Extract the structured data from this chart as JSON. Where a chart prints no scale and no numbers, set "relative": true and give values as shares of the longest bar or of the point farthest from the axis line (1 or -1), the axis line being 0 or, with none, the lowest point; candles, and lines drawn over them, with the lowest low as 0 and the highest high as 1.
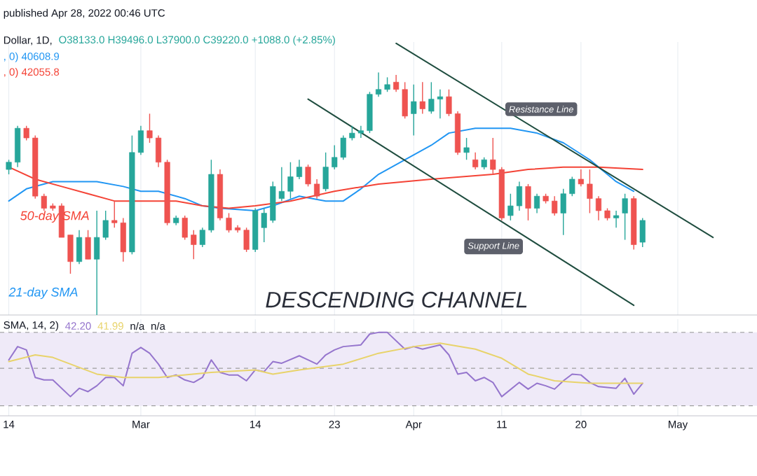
{
  "chart_data": [
    {
      "type": "candlestick",
      "title": "Dollar, 1D,",
      "subtitle": "O38133.0  H39496.0  L37900.0  C39220.0  +1088.0 (+2.85%)",
      "relative": true,
      "x": [
        "2022-02-14",
        "2022-02-15",
        "2022-02-16",
        "2022-02-17",
        "2022-02-18",
        "2022-02-19",
        "2022-02-20",
        "2022-02-21",
        "2022-02-22",
        "2022-02-23",
        "2022-02-24",
        "2022-02-25",
        "2022-02-26",
        "2022-02-27",
        "2022-02-28",
        "2022-03-01",
        "2022-03-02",
        "2022-03-03",
        "2022-03-04",
        "2022-03-05",
        "2022-03-06",
        "2022-03-07",
        "2022-03-08",
        "2022-03-09",
        "2022-03-10",
        "2022-03-11",
        "2022-03-12",
        "2022-03-13",
        "2022-03-14",
        "2022-03-15",
        "2022-03-16",
        "2022-03-17",
        "2022-03-18",
        "2022-03-19",
        "2022-03-20",
        "2022-03-21",
        "2022-03-22",
        "2022-03-23",
        "2022-03-24",
        "2022-03-25",
        "2022-03-26",
        "2022-03-27",
        "2022-03-28",
        "2022-03-29",
        "2022-03-30",
        "2022-03-31",
        "2022-04-01",
        "2022-04-02",
        "2022-04-03",
        "2022-04-04",
        "2022-04-05",
        "2022-04-06",
        "2022-04-07",
        "2022-04-08",
        "2022-04-09",
        "2022-04-10",
        "2022-04-11",
        "2022-04-12",
        "2022-04-13",
        "2022-04-14",
        "2022-04-15",
        "2022-04-16",
        "2022-04-17",
        "2022-04-18",
        "2022-04-19",
        "2022-04-20",
        "2022-04-21",
        "2022-04-22",
        "2022-04-23",
        "2022-04-24",
        "2022-04-25",
        "2022-04-26",
        "2022-04-27"
      ],
      "ohlc": [
        [
          0.6,
          0.64,
          0.58,
          0.63
        ],
        [
          0.63,
          0.78,
          0.61,
          0.77
        ],
        [
          0.77,
          0.78,
          0.72,
          0.73
        ],
        [
          0.73,
          0.74,
          0.48,
          0.49
        ],
        [
          0.49,
          0.5,
          0.43,
          0.44
        ],
        [
          0.45,
          0.46,
          0.43,
          0.44
        ],
        [
          0.45,
          0.46,
          0.32,
          0.32
        ],
        [
          0.33,
          0.33,
          0.17,
          0.22
        ],
        [
          0.22,
          0.35,
          0.21,
          0.32
        ],
        [
          0.32,
          0.35,
          0.23,
          0.23
        ],
        [
          0.23,
          0.43,
          0,
          0.32
        ],
        [
          0.32,
          0.43,
          0.31,
          0.39
        ],
        [
          0.39,
          0.47,
          0.36,
          0.38
        ],
        [
          0.38,
          0.4,
          0.22,
          0.26
        ],
        [
          0.26,
          0.74,
          0.25,
          0.67
        ],
        [
          0.67,
          0.78,
          0.66,
          0.76
        ],
        [
          0.76,
          0.83,
          0.71,
          0.73
        ],
        [
          0.73,
          0.74,
          0.61,
          0.63
        ],
        [
          0.63,
          0.64,
          0.37,
          0.38
        ],
        [
          0.38,
          0.41,
          0.37,
          0.4
        ],
        [
          0.4,
          0.41,
          0.31,
          0.32
        ],
        [
          0.33,
          0.35,
          0.23,
          0.29
        ],
        [
          0.29,
          0.36,
          0.28,
          0.35
        ],
        [
          0.35,
          0.64,
          0.34,
          0.58
        ],
        [
          0.58,
          0.6,
          0.39,
          0.4
        ],
        [
          0.4,
          0.42,
          0.34,
          0.35
        ],
        [
          0.36,
          0.37,
          0.34,
          0.35
        ],
        [
          0.35,
          0.36,
          0.26,
          0.27
        ],
        [
          0.27,
          0.44,
          0.26,
          0.43
        ],
        [
          0.36,
          0.44,
          0.3,
          0.42
        ],
        [
          0.39,
          0.55,
          0.38,
          0.53
        ],
        [
          0.48,
          0.61,
          0.47,
          0.51
        ],
        [
          0.51,
          0.63,
          0.48,
          0.57
        ],
        [
          0.57,
          0.64,
          0.56,
          0.61
        ],
        [
          0.61,
          0.62,
          0.53,
          0.54
        ],
        [
          0.54,
          0.56,
          0.48,
          0.49
        ],
        [
          0.52,
          0.67,
          0.51,
          0.61
        ],
        [
          0.61,
          0.7,
          0.6,
          0.65
        ],
        [
          0.65,
          0.74,
          0.64,
          0.73
        ],
        [
          0.73,
          0.78,
          0.72,
          0.75
        ],
        [
          0.75,
          0.78,
          0.73,
          0.76
        ],
        [
          0.76,
          0.92,
          0.75,
          0.91
        ],
        [
          0.91,
          1.0,
          0.9,
          0.93
        ],
        [
          0.93,
          0.98,
          0.92,
          0.95
        ],
        [
          0.96,
          0.99,
          0.92,
          0.93
        ],
        [
          0.93,
          0.96,
          0.81,
          0.82
        ],
        [
          0.83,
          0.95,
          0.74,
          0.88
        ],
        [
          0.88,
          0.96,
          0.83,
          0.85
        ],
        [
          0.84,
          0.96,
          0.83,
          0.89
        ],
        [
          0.89,
          0.93,
          0.81,
          0.9
        ],
        [
          0.9,
          0.93,
          0.82,
          0.83
        ],
        [
          0.83,
          0.84,
          0.66,
          0.67
        ],
        [
          0.67,
          0.73,
          0.64,
          0.69
        ],
        [
          0.64,
          0.67,
          0.6,
          0.61
        ],
        [
          0.61,
          0.65,
          0.6,
          0.64
        ],
        [
          0.64,
          0.73,
          0.58,
          0.6
        ],
        [
          0.6,
          0.61,
          0.39,
          0.4
        ],
        [
          0.41,
          0.5,
          0.39,
          0.45
        ],
        [
          0.45,
          0.55,
          0.43,
          0.53
        ],
        [
          0.53,
          0.54,
          0.39,
          0.44
        ],
        [
          0.44,
          0.5,
          0.42,
          0.49
        ],
        [
          0.49,
          0.5,
          0.46,
          0.47
        ],
        [
          0.47,
          0.49,
          0.41,
          0.42
        ],
        [
          0.42,
          0.52,
          0.33,
          0.5
        ],
        [
          0.5,
          0.57,
          0.49,
          0.56
        ],
        [
          0.56,
          0.6,
          0.53,
          0.54
        ],
        [
          0.54,
          0.6,
          0.42,
          0.48
        ],
        [
          0.48,
          0.49,
          0.39,
          0.43
        ],
        [
          0.43,
          0.44,
          0.39,
          0.4
        ],
        [
          0.4,
          0.43,
          0.36,
          0.41
        ],
        [
          0.42,
          0.5,
          0.31,
          0.48
        ],
        [
          0.48,
          0.49,
          0.27,
          0.29
        ],
        [
          0.3,
          0.4,
          0.28,
          0.39
        ]
      ],
      "colors": [
        "#26a69a",
        "#26a69a",
        "#ef5350",
        "#ef5350",
        "#ef5350",
        "#ef5350",
        "#ef5350",
        "#ef5350",
        "#26a69a",
        "#ef5350",
        "#26a69a",
        "#26a69a",
        "#ef5350",
        "#ef5350",
        "#26a69a",
        "#26a69a",
        "#ef5350",
        "#ef5350",
        "#ef5350",
        "#26a69a",
        "#ef5350",
        "#ef5350",
        "#26a69a",
        "#26a69a",
        "#ef5350",
        "#ef5350",
        "#ef5350",
        "#ef5350",
        "#26a69a",
        "#26a69a",
        "#26a69a",
        "#26a69a",
        "#26a69a",
        "#26a69a",
        "#ef5350",
        "#ef5350",
        "#26a69a",
        "#26a69a",
        "#26a69a",
        "#26a69a",
        "#26a69a",
        "#26a69a",
        "#26a69a",
        "#26a69a",
        "#ef5350",
        "#ef5350",
        "#26a69a",
        "#ef5350",
        "#26a69a",
        "#26a69a",
        "#ef5350",
        "#ef5350",
        "#26a69a",
        "#ef5350",
        "#26a69a",
        "#ef5350",
        "#ef5350",
        "#26a69a",
        "#26a69a",
        "#ef5350",
        "#26a69a",
        "#ef5350",
        "#ef5350",
        "#26a69a",
        "#26a69a",
        "#ef5350",
        "#ef5350",
        "#ef5350",
        "#ef5350",
        "#26a69a",
        "#26a69a",
        "#ef5350",
        "#26a69a"
      ],
      "xlim": [
        "2022-02-13",
        "2022-05-10"
      ],
      "xticks": [
        {
          "value": "2022-02-14",
          "label": null
        },
        {
          "value": "2022-03-01",
          "label": null
        },
        {
          "value": "2022-03-14",
          "label": null
        },
        {
          "value": "2022-03-23",
          "label": null
        },
        {
          "value": "2022-04-01",
          "label": null
        },
        {
          "value": "2022-04-11",
          "label": null
        },
        {
          "value": "2022-04-20",
          "label": null
        },
        {
          "value": "2022-05-01",
          "label": null
        }
      ],
      "tick_labels": false,
      "grid": "x",
      "series": [
        {
          "name": "21-day SMA",
          "type": "line",
          "color": "#2196f3",
          "x": [
            "2022-02-14",
            "2022-02-16",
            "2022-02-19",
            "2022-02-24",
            "2022-02-27",
            "2022-03-01",
            "2022-03-03",
            "2022-03-06",
            "2022-03-08",
            "2022-03-10",
            "2022-03-14",
            "2022-03-16",
            "2022-03-19",
            "2022-03-22",
            "2022-03-24",
            "2022-03-26",
            "2022-03-28",
            "2022-03-31",
            "2022-04-03",
            "2022-04-05",
            "2022-04-08",
            "2022-04-12",
            "2022-04-15",
            "2022-04-18",
            "2022-04-21",
            "2022-04-24",
            "2022-04-26"
          ],
          "values": [
            0.47,
            0.52,
            0.55,
            0.55,
            0.53,
            0.51,
            0.51,
            0.48,
            0.45,
            0.44,
            0.43,
            0.45,
            0.49,
            0.47,
            0.47,
            0.52,
            0.58,
            0.64,
            0.7,
            0.75,
            0.77,
            0.77,
            0.75,
            0.71,
            0.64,
            0.55,
            0.51
          ]
        },
        {
          "name": "50-day SMA",
          "type": "line",
          "color": "#f44336",
          "x": [
            "2022-02-14",
            "2022-02-17",
            "2022-02-20",
            "2022-02-23",
            "2022-02-26",
            "2022-03-02",
            "2022-03-05",
            "2022-03-08",
            "2022-03-11",
            "2022-03-14",
            "2022-03-18",
            "2022-03-23",
            "2022-03-28",
            "2022-04-03",
            "2022-04-10",
            "2022-04-14",
            "2022-04-18",
            "2022-04-22",
            "2022-04-27"
          ],
          "values": [
            0.61,
            0.56,
            0.53,
            0.5,
            0.47,
            0.47,
            0.47,
            0.45,
            0.44,
            0.45,
            0.47,
            0.51,
            0.54,
            0.56,
            0.58,
            0.6,
            0.61,
            0.61,
            0.6
          ]
        },
        {
          "type": "line",
          "color": "#1f4d3f",
          "x": [
            "2022-03-30",
            "2022-05-05"
          ],
          "values": [
            1.12,
            0.32
          ]
        },
        {
          "type": "line",
          "color": "#1f4d3f",
          "x": [
            "2022-03-20",
            "2022-04-26"
          ],
          "values": [
            0.89,
            0.04
          ]
        }
      ],
      "annotations": [
        "published Apr 28, 2022 00:46 UTC",
        ", 0)  40608.9",
        ", 0)  42055.8",
        "DESCENDING CHANNEL",
        "Resistance Line",
        "Support Line"
      ]
    },
    {
      "type": "line",
      "relative": true,
      "xlim": [
        "2022-02-13",
        "2022-05-10"
      ],
      "xticks": [
        {
          "value": "2022-02-14",
          "label": "14"
        },
        {
          "value": "2022-03-01",
          "label": "Mar"
        },
        {
          "value": "2022-03-14",
          "label": "14"
        },
        {
          "value": "2022-03-23",
          "label": "23"
        },
        {
          "value": "2022-04-01",
          "label": "Apr"
        },
        {
          "value": "2022-04-11",
          "label": "11"
        },
        {
          "value": "2022-04-20",
          "label": "20"
        },
        {
          "value": "2022-05-01",
          "label": "May"
        }
      ],
      "tick_labels": "x",
      "grid": "x",
      "bands": [
        {
          "axis": "y",
          "from": 0.12,
          "to": 1.0,
          "color": "#efeaf8"
        }
      ],
      "ref_lines": [
        {
          "axis": "y",
          "value": 1.0,
          "color": "#9e9e9e",
          "line_style": "dashed"
        },
        {
          "axis": "y",
          "value": 0.57,
          "color": "#9e9e9e",
          "line_style": "dashed"
        },
        {
          "axis": "y",
          "value": 0.12,
          "color": "#9e9e9e",
          "line_style": "dashed"
        }
      ],
      "series": [
        {
          "type": "line",
          "color": "#9575cd",
          "x": [
            "2022-02-14",
            "2022-02-15",
            "2022-02-16",
            "2022-02-17",
            "2022-02-18",
            "2022-02-19",
            "2022-02-21",
            "2022-02-22",
            "2022-02-23",
            "2022-02-24",
            "2022-02-25",
            "2022-02-26",
            "2022-02-27",
            "2022-02-28",
            "2022-03-01",
            "2022-03-02",
            "2022-03-03",
            "2022-03-04",
            "2022-03-05",
            "2022-03-06",
            "2022-03-07",
            "2022-03-08",
            "2022-03-09",
            "2022-03-10",
            "2022-03-11",
            "2022-03-12",
            "2022-03-13",
            "2022-03-14",
            "2022-03-15",
            "2022-03-16",
            "2022-03-17",
            "2022-03-19",
            "2022-03-20",
            "2022-03-21",
            "2022-03-22",
            "2022-03-23",
            "2022-03-24",
            "2022-03-26",
            "2022-03-27",
            "2022-03-28",
            "2022-03-29",
            "2022-03-31",
            "2022-04-01",
            "2022-04-02",
            "2022-04-04",
            "2022-04-05",
            "2022-04-06",
            "2022-04-07",
            "2022-04-08",
            "2022-04-09",
            "2022-04-10",
            "2022-04-11",
            "2022-04-13",
            "2022-04-14",
            "2022-04-15",
            "2022-04-16",
            "2022-04-17",
            "2022-04-18",
            "2022-04-19",
            "2022-04-20",
            "2022-04-21",
            "2022-04-22",
            "2022-04-24",
            "2022-04-25",
            "2022-04-26",
            "2022-04-27"
          ],
          "values": [
            0.67,
            0.83,
            0.79,
            0.46,
            0.43,
            0.43,
            0.23,
            0.33,
            0.29,
            0.36,
            0.46,
            0.46,
            0.36,
            0.75,
            0.82,
            0.75,
            0.62,
            0.46,
            0.49,
            0.43,
            0.4,
            0.46,
            0.67,
            0.52,
            0.49,
            0.49,
            0.42,
            0.55,
            0.53,
            0.65,
            0.63,
            0.72,
            0.67,
            0.62,
            0.73,
            0.79,
            0.83,
            0.85,
            0.98,
            1.0,
            1.0,
            0.8,
            0.83,
            0.8,
            0.85,
            0.73,
            0.5,
            0.52,
            0.42,
            0.46,
            0.4,
            0.23,
            0.4,
            0.32,
            0.39,
            0.36,
            0.32,
            0.42,
            0.5,
            0.49,
            0.4,
            0.35,
            0.33,
            0.45,
            0.26,
            0.39
          ]
        },
        {
          "type": "line",
          "color": "#e8d36a",
          "x": [
            "2022-02-14",
            "2022-02-17",
            "2022-02-19",
            "2022-02-24",
            "2022-02-27",
            "2022-03-03",
            "2022-03-09",
            "2022-03-14",
            "2022-03-16",
            "2022-03-19",
            "2022-03-24",
            "2022-03-28",
            "2022-04-01",
            "2022-04-04",
            "2022-04-08",
            "2022-04-11",
            "2022-04-14",
            "2022-04-17",
            "2022-04-21",
            "2022-04-27"
          ],
          "values": [
            0.65,
            0.73,
            0.7,
            0.5,
            0.46,
            0.46,
            0.52,
            0.55,
            0.5,
            0.55,
            0.62,
            0.75,
            0.83,
            0.87,
            0.8,
            0.69,
            0.5,
            0.42,
            0.39,
            0.39
          ]
        }
      ],
      "annotations": [
        "SMA, 14, 2)",
        "42.20",
        "41.99",
        "n/a",
        "n/a"
      ]
    }
  ]
}
